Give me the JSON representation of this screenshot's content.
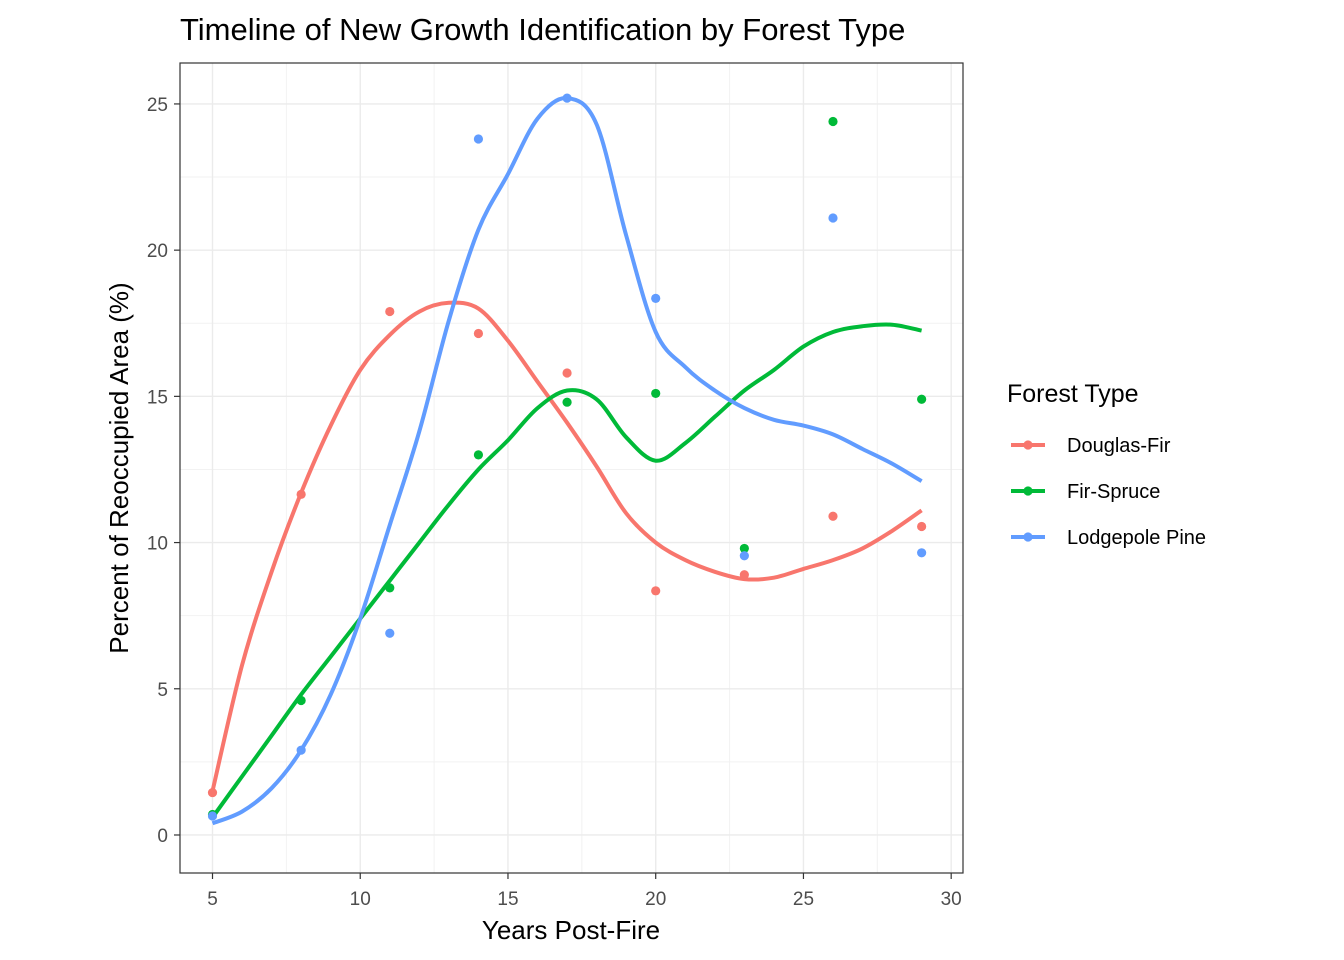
{
  "chart_data": {
    "type": "scatter",
    "title": "Timeline of New Growth Identification by Forest Type",
    "xlabel": "Years Post-Fire",
    "ylabel": "Percent of Reoccupied Area (%)",
    "xlim": [
      3.9,
      30.4
    ],
    "ylim": [
      -1.3,
      26.4
    ],
    "x_ticks": [
      5,
      10,
      15,
      20,
      25,
      30
    ],
    "y_ticks": [
      0,
      5,
      10,
      15,
      20,
      25
    ],
    "x_tick_labels": [
      "5",
      "10",
      "15",
      "20",
      "25",
      "30"
    ],
    "y_tick_labels": [
      "0",
      "5",
      "10",
      "15",
      "20",
      "25"
    ],
    "grid": true,
    "legend_title": "Forest Type",
    "legend_position": "right",
    "series": [
      {
        "name": "Douglas-Fir",
        "color": "#F8766D",
        "x": [
          5,
          8,
          11,
          14,
          17,
          20,
          23,
          26,
          29
        ],
        "y": [
          1.45,
          11.65,
          17.9,
          17.15,
          15.8,
          8.35,
          8.9,
          10.9,
          10.55
        ],
        "smooth_x": [
          5,
          6,
          7,
          8,
          9,
          10,
          11,
          12,
          13,
          14,
          15,
          16,
          17,
          18,
          19,
          20,
          21,
          22,
          23,
          24,
          25,
          26,
          27,
          28,
          29
        ],
        "smooth_y": [
          1.5,
          5.8,
          9.0,
          11.7,
          14.0,
          15.9,
          17.1,
          17.9,
          18.2,
          18.0,
          16.9,
          15.5,
          14.1,
          12.6,
          11.0,
          10.0,
          9.4,
          9.0,
          8.75,
          8.8,
          9.1,
          9.4,
          9.8,
          10.4,
          11.1
        ]
      },
      {
        "name": "Fir-Spruce",
        "color": "#00BA38",
        "x": [
          5,
          8,
          11,
          14,
          17,
          20,
          23,
          26,
          29
        ],
        "y": [
          0.7,
          4.6,
          8.45,
          13.0,
          14.8,
          15.1,
          9.8,
          24.4,
          14.9
        ],
        "smooth_x": [
          5,
          6,
          7,
          8,
          9,
          10,
          11,
          12,
          13,
          14,
          15,
          16,
          17,
          18,
          19,
          20,
          21,
          22,
          23,
          24,
          25,
          26,
          27,
          28,
          29
        ],
        "smooth_y": [
          0.6,
          2.0,
          3.4,
          4.8,
          6.1,
          7.4,
          8.7,
          10.0,
          11.3,
          12.5,
          13.5,
          14.6,
          15.2,
          14.9,
          13.6,
          12.8,
          13.4,
          14.3,
          15.2,
          15.9,
          16.7,
          17.2,
          17.4,
          17.45,
          17.25
        ]
      },
      {
        "name": "Lodgepole Pine",
        "color": "#619CFF",
        "x": [
          5,
          8,
          11,
          14,
          17,
          20,
          23,
          26,
          29
        ],
        "y": [
          0.65,
          2.9,
          6.9,
          23.8,
          25.2,
          18.35,
          9.55,
          21.1,
          9.65
        ],
        "smooth_x": [
          5,
          6,
          7,
          8,
          9,
          10,
          11,
          12,
          13,
          14,
          15,
          16,
          17,
          18,
          19,
          20,
          21,
          22,
          23,
          24,
          25,
          26,
          27,
          28,
          29
        ],
        "smooth_y": [
          0.4,
          0.8,
          1.6,
          2.9,
          4.8,
          7.4,
          10.6,
          13.8,
          17.6,
          20.7,
          22.6,
          24.5,
          25.2,
          24.3,
          20.5,
          17.2,
          16.0,
          15.2,
          14.6,
          14.2,
          14.0,
          13.7,
          13.2,
          12.7,
          12.1
        ]
      }
    ]
  }
}
